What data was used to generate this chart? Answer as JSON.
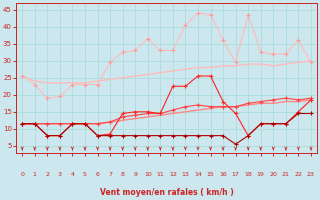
{
  "xlabel": "Vent moyen/en rafales ( km/h )",
  "background_color": "#cce8ee",
  "grid_color": "#aadddd",
  "x_values": [
    0,
    1,
    2,
    3,
    4,
    5,
    6,
    7,
    8,
    9,
    10,
    11,
    12,
    13,
    14,
    15,
    16,
    17,
    18,
    19,
    20,
    21,
    22,
    23
  ],
  "ylim": [
    3,
    47
  ],
  "xlim": [
    -0.5,
    23.5
  ],
  "yticks": [
    5,
    10,
    15,
    20,
    25,
    30,
    35,
    40,
    45
  ],
  "series": [
    {
      "data": [
        25.5,
        24.0,
        23.5,
        23.5,
        23.5,
        23.5,
        24.0,
        24.5,
        25.0,
        25.5,
        26.0,
        26.5,
        27.0,
        27.5,
        28.0,
        28.0,
        28.5,
        28.5,
        29.0,
        29.0,
        28.5,
        29.0,
        29.5,
        30.0
      ],
      "color": "#ffbbbb",
      "linewidth": 1.0,
      "marker": null
    },
    {
      "data": [
        25.5,
        23.0,
        19.0,
        19.5,
        23.0,
        23.0,
        23.0,
        29.5,
        32.5,
        33.0,
        36.5,
        33.0,
        33.0,
        40.5,
        44.0,
        43.5,
        36.0,
        29.5,
        43.5,
        32.5,
        32.0,
        32.0,
        36.0,
        29.5
      ],
      "color": "#ffbbbb",
      "linewidth": 0.8,
      "marker": "+",
      "markersize": 3,
      "markerfacecolor": "#ff9999",
      "markeredgecolor": "#ff9999"
    },
    {
      "data": [
        11.5,
        11.5,
        11.5,
        11.5,
        11.5,
        11.5,
        11.5,
        12.0,
        12.5,
        13.0,
        13.5,
        14.0,
        14.5,
        15.0,
        15.5,
        16.0,
        16.5,
        16.5,
        17.0,
        17.5,
        17.5,
        18.0,
        18.0,
        18.5
      ],
      "color": "#ff8888",
      "linewidth": 1.0,
      "marker": null
    },
    {
      "data": [
        11.5,
        11.5,
        11.5,
        11.5,
        11.5,
        11.5,
        11.5,
        12.0,
        13.5,
        14.0,
        14.5,
        14.5,
        15.5,
        16.5,
        17.0,
        16.5,
        16.5,
        16.5,
        17.5,
        18.0,
        18.5,
        19.0,
        18.5,
        19.0
      ],
      "color": "#ff4444",
      "linewidth": 0.8,
      "marker": "+",
      "markersize": 3,
      "markerfacecolor": "#ff4444",
      "markeredgecolor": "#ff4444"
    },
    {
      "data": [
        11.5,
        11.5,
        8.0,
        8.0,
        11.5,
        11.5,
        8.0,
        8.5,
        14.5,
        15.0,
        15.0,
        14.5,
        22.5,
        22.5,
        25.5,
        25.5,
        18.0,
        14.5,
        8.0,
        11.5,
        11.5,
        11.5,
        15.0,
        18.5
      ],
      "color": "#ff2222",
      "linewidth": 0.8,
      "marker": "+",
      "markersize": 3,
      "markerfacecolor": "#ff2222",
      "markeredgecolor": "#ff2222"
    },
    {
      "data": [
        11.5,
        11.5,
        8.0,
        8.0,
        11.5,
        11.5,
        8.0,
        8.0,
        8.0,
        8.0,
        8.0,
        8.0,
        8.0,
        8.0,
        8.0,
        8.0,
        8.0,
        5.5,
        8.0,
        11.5,
        11.5,
        11.5,
        14.5,
        14.5
      ],
      "color": "#aa0000",
      "linewidth": 0.8,
      "marker": "+",
      "markersize": 3,
      "markerfacecolor": "#aa0000",
      "markeredgecolor": "#aa0000"
    }
  ],
  "arrow_color": "#cc2222",
  "tick_label_color": "#cc2222",
  "axis_label_color": "#cc2222",
  "spine_color": "#cc2222"
}
